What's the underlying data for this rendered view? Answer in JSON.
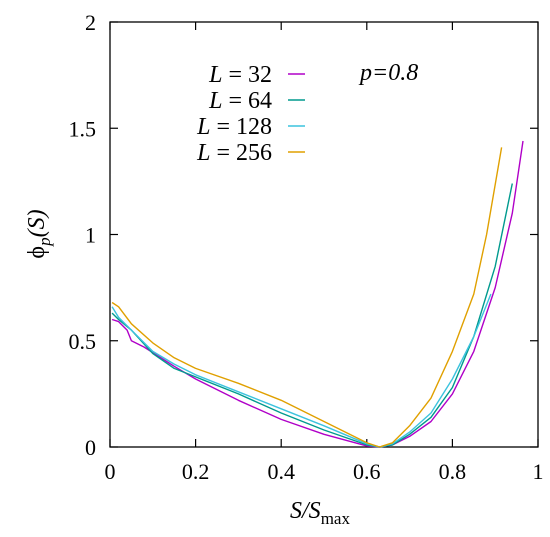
{
  "chart_data": {
    "type": "line",
    "xlim": [
      0,
      1
    ],
    "ylim": [
      0,
      2
    ],
    "xticks": [
      "0",
      "0.2",
      "0.4",
      "0.6",
      "0.8",
      "1"
    ],
    "yticks": [
      "0",
      "0.5",
      "1",
      "1.5",
      "2"
    ],
    "xlabel": {
      "main": "S/S",
      "sub": "max"
    },
    "ylabel": {
      "main": "ϕ",
      "sub": "p",
      "arg": "(S)"
    },
    "annotation": "p=0.8",
    "legend_position": "top-center",
    "grid": false,
    "series": [
      {
        "name": "L = 32",
        "color": "#b000c8",
        "points": [
          [
            0.005,
            0.6
          ],
          [
            0.02,
            0.59
          ],
          [
            0.04,
            0.55
          ],
          [
            0.05,
            0.5
          ],
          [
            0.08,
            0.47
          ],
          [
            0.15,
            0.38
          ],
          [
            0.2,
            0.32
          ],
          [
            0.3,
            0.22
          ],
          [
            0.4,
            0.13
          ],
          [
            0.5,
            0.06
          ],
          [
            0.6,
            0.005
          ],
          [
            0.63,
            0.0
          ],
          [
            0.66,
            0.01
          ],
          [
            0.7,
            0.05
          ],
          [
            0.75,
            0.12
          ],
          [
            0.8,
            0.25
          ],
          [
            0.85,
            0.45
          ],
          [
            0.9,
            0.75
          ],
          [
            0.94,
            1.1
          ],
          [
            0.965,
            1.44
          ]
        ]
      },
      {
        "name": "L = 64",
        "color": "#009a8e",
        "points": [
          [
            0.005,
            0.63
          ],
          [
            0.02,
            0.6
          ],
          [
            0.05,
            0.55
          ],
          [
            0.1,
            0.44
          ],
          [
            0.15,
            0.37
          ],
          [
            0.2,
            0.33
          ],
          [
            0.3,
            0.25
          ],
          [
            0.4,
            0.16
          ],
          [
            0.5,
            0.08
          ],
          [
            0.6,
            0.01
          ],
          [
            0.63,
            0.0
          ],
          [
            0.66,
            0.01
          ],
          [
            0.7,
            0.06
          ],
          [
            0.75,
            0.14
          ],
          [
            0.8,
            0.28
          ],
          [
            0.85,
            0.52
          ],
          [
            0.9,
            0.85
          ],
          [
            0.94,
            1.24
          ]
        ]
      },
      {
        "name": "L = 128",
        "color": "#3cc3de",
        "points": [
          [
            0.005,
            0.66
          ],
          [
            0.02,
            0.61
          ],
          [
            0.05,
            0.55
          ],
          [
            0.1,
            0.45
          ],
          [
            0.15,
            0.39
          ],
          [
            0.2,
            0.34
          ],
          [
            0.3,
            0.26
          ],
          [
            0.4,
            0.18
          ],
          [
            0.5,
            0.1
          ],
          [
            0.6,
            0.015
          ],
          [
            0.63,
            0.0
          ],
          [
            0.66,
            0.015
          ],
          [
            0.7,
            0.07
          ],
          [
            0.75,
            0.16
          ],
          [
            0.8,
            0.32
          ],
          [
            0.85,
            0.52
          ],
          [
            0.89,
            0.72
          ]
        ]
      },
      {
        "name": "L = 256",
        "color": "#e0a000",
        "points": [
          [
            0.005,
            0.68
          ],
          [
            0.02,
            0.66
          ],
          [
            0.05,
            0.58
          ],
          [
            0.1,
            0.49
          ],
          [
            0.15,
            0.42
          ],
          [
            0.2,
            0.37
          ],
          [
            0.3,
            0.3
          ],
          [
            0.4,
            0.22
          ],
          [
            0.5,
            0.12
          ],
          [
            0.6,
            0.02
          ],
          [
            0.63,
            0.0
          ],
          [
            0.66,
            0.02
          ],
          [
            0.7,
            0.1
          ],
          [
            0.75,
            0.23
          ],
          [
            0.8,
            0.45
          ],
          [
            0.85,
            0.72
          ],
          [
            0.88,
            1.0
          ],
          [
            0.915,
            1.41
          ]
        ]
      }
    ]
  }
}
